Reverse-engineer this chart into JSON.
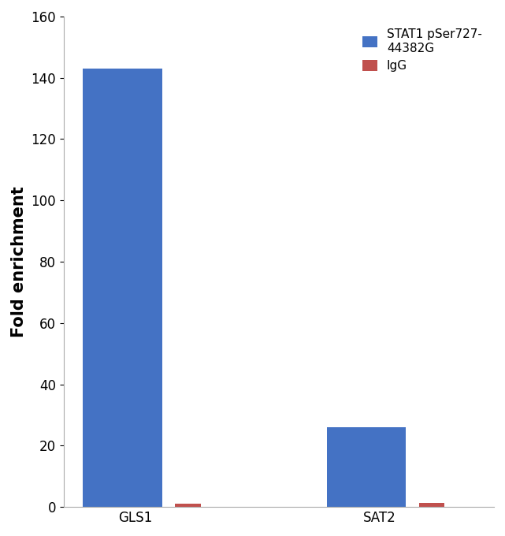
{
  "categories": [
    "GLS1",
    "SAT2"
  ],
  "stat1_values": [
    143,
    26
  ],
  "igg_values": [
    1.2,
    1.3
  ],
  "stat1_color": "#4472C4",
  "igg_color": "#C0504D",
  "ylabel": "Fold enrichment",
  "ylim": [
    0,
    160
  ],
  "yticks": [
    0,
    20,
    40,
    60,
    80,
    100,
    120,
    140,
    160
  ],
  "legend_label_stat1": "STAT1 pSer727-\n44382G",
  "legend_label_igg": "IgG",
  "stat1_bar_width": 0.55,
  "igg_bar_width": 0.18,
  "background_color": "#ffffff",
  "ylabel_fontsize": 15,
  "tick_fontsize": 12,
  "legend_fontsize": 11,
  "group_positions": [
    0.5,
    2.2
  ]
}
